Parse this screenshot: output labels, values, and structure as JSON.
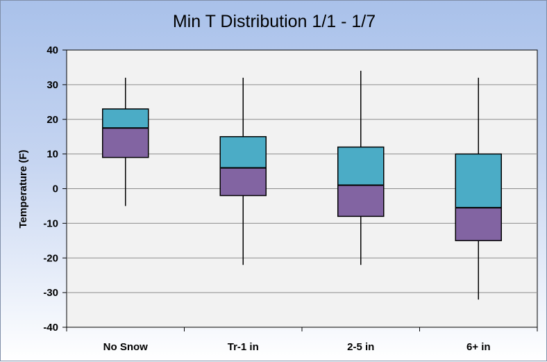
{
  "chart_data": {
    "type": "box",
    "title": "Min T Distribution  1/1 - 1/7",
    "xlabel": "",
    "ylabel": "Temperature (F)",
    "ylim": [
      -40,
      40
    ],
    "yticks": [
      -40,
      -30,
      -20,
      -10,
      0,
      10,
      20,
      30,
      40
    ],
    "grid": true,
    "categories": [
      "No Snow",
      "Tr-1 in",
      "2-5 in",
      "6+ in"
    ],
    "boxes": [
      {
        "min": -5,
        "q1": 9,
        "median": 17.5,
        "q3": 23,
        "max": 32
      },
      {
        "min": -22,
        "q1": -2,
        "median": 6,
        "q3": 15,
        "max": 32
      },
      {
        "min": -22,
        "q1": -8,
        "median": 1,
        "q3": 12,
        "max": 34
      },
      {
        "min": -32,
        "q1": -15,
        "median": -5.5,
        "q3": 10,
        "max": 32
      }
    ],
    "colors": {
      "lower_box": "#8264a2",
      "upper_box": "#4bacc6",
      "plot_bg": "#f2f2f2",
      "grid": "#8c8c8c",
      "whisker": "#000000"
    }
  }
}
